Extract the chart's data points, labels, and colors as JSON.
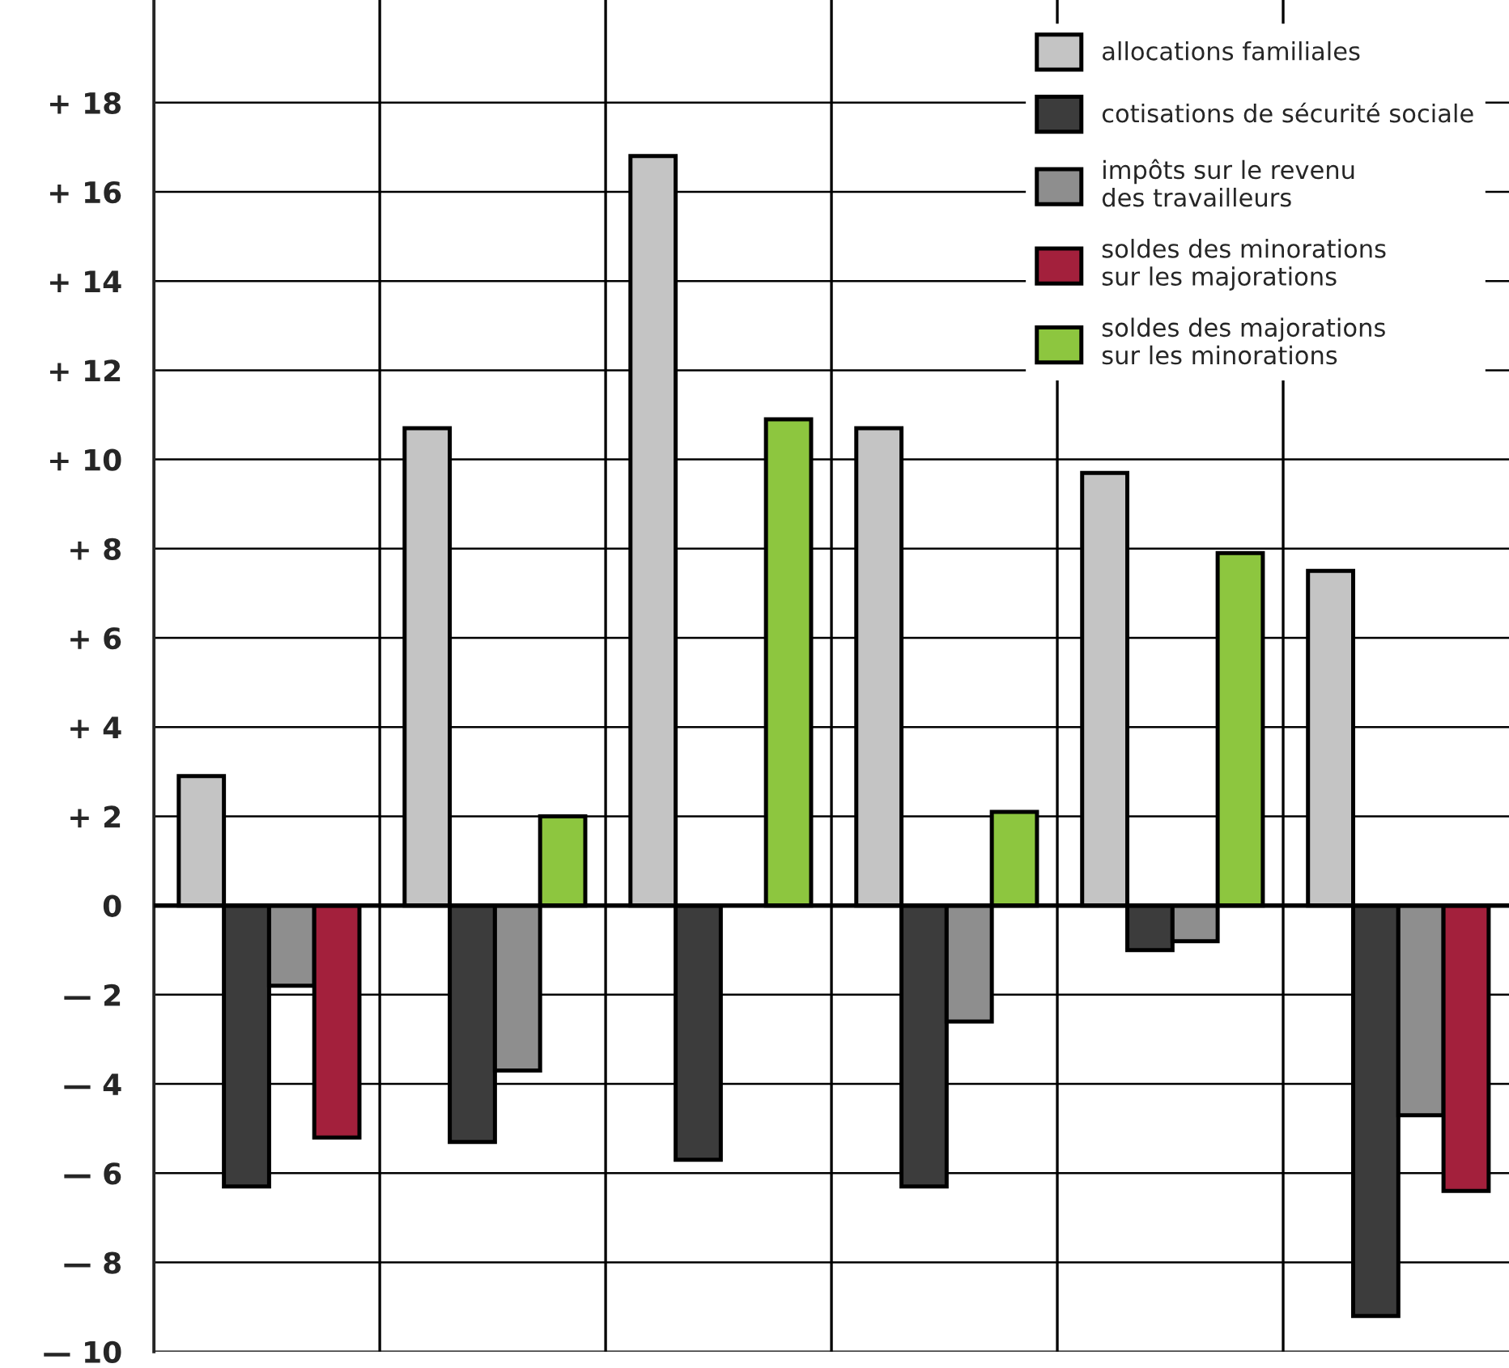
{
  "chart_data": {
    "type": "bar",
    "categories": [
      null,
      null,
      null,
      null,
      null,
      null
    ],
    "series": [
      {
        "name": "allocations familiales",
        "color": "#c4c4c4",
        "values": [
          2.9,
          10.7,
          16.8,
          10.7,
          9.7,
          7.5
        ]
      },
      {
        "name": "cotisations de sécurité sociale",
        "color": "#3c3c3c",
        "values": [
          -6.3,
          -5.3,
          -5.7,
          -6.3,
          -1.0,
          -9.2
        ]
      },
      {
        "name": "impôts sur le revenu\ndes travailleurs",
        "color": "#8e8e8e",
        "values": [
          -1.8,
          -3.7,
          null,
          -2.6,
          -0.8,
          -4.7
        ]
      },
      {
        "name": "soldes des minorations\nsur les majorations",
        "color": "#a3203c",
        "values": [
          -5.2,
          null,
          null,
          null,
          null,
          -6.4
        ]
      },
      {
        "name": "soldes des majorations\nsur les minorations",
        "color": "#8dc63f",
        "values": [
          null,
          2.0,
          10.9,
          2.1,
          7.9,
          null
        ]
      }
    ],
    "ylim": [
      -10,
      20.3
    ],
    "yticks": [
      {
        "value": -10,
        "label": "— 10"
      },
      {
        "value": -8,
        "label": "— 8"
      },
      {
        "value": -6,
        "label": "— 6"
      },
      {
        "value": -4,
        "label": "— 4"
      },
      {
        "value": -2,
        "label": "— 2"
      },
      0,
      {
        "value": 2,
        "label": "+ 2"
      },
      {
        "value": 4,
        "label": "+ 4"
      },
      {
        "value": 6,
        "label": "+ 6"
      },
      {
        "value": 8,
        "label": "+ 8"
      },
      {
        "value": 10,
        "label": "+ 10"
      },
      {
        "value": 12,
        "label": "+ 12"
      },
      {
        "value": 14,
        "label": "+ 14"
      },
      {
        "value": 16,
        "label": "+ 16"
      },
      {
        "value": 18,
        "label": "+ 18"
      }
    ],
    "grid": true,
    "legend": "top right",
    "tick_labels": "y"
  }
}
